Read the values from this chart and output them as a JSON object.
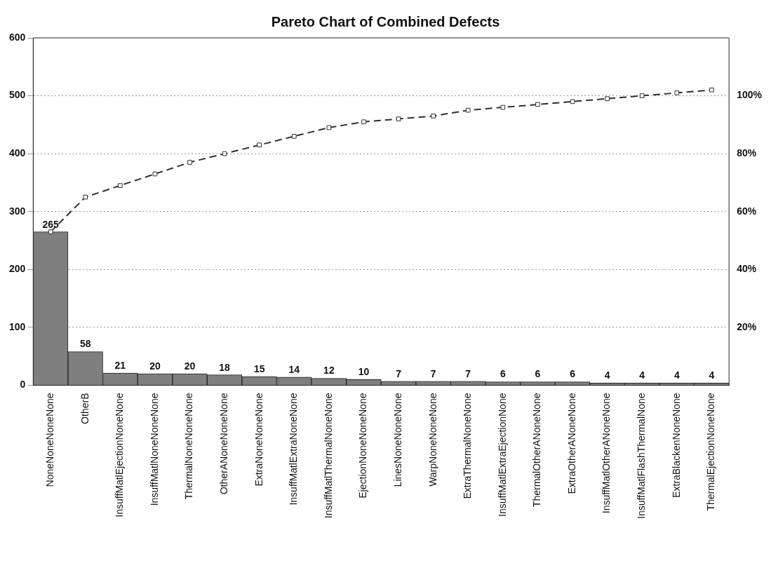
{
  "chart_data": {
    "type": "bar",
    "title": "Pareto Chart of Combined Defects",
    "categories": [
      "NoneNoneNoneNone",
      "OtherB",
      "InsuffMatlEjectionNoneNone",
      "InsuffMatlNoneNoneNone",
      "ThermalNoneNoneNone",
      "OtherANoneNoneNone",
      "ExtraNoneNoneNone",
      "InsuffMatlExtraNoneNone",
      "InsuffMatlThermalNoneNone",
      "EjectionNoneNoneNone",
      "LinesNoneNoneNone",
      "WarpNoneNoneNone",
      "ExtraThermalNoneNone",
      "InsuffMatlExtraEjectionNone",
      "ThermalOtherANoneNone",
      "ExtraOtherANoneNone",
      "InsuffMatlOtherANoneNone",
      "InsuffMatlFlashThermalNone",
      "ExtraBlackenNoneNone",
      "ThermalEjectionNoneNone"
    ],
    "series": [
      {
        "color": "#7f7f7f",
        "values": [
          265,
          58,
          21,
          20,
          20,
          18,
          15,
          14,
          12,
          10,
          7,
          7,
          7,
          6,
          6,
          6,
          4,
          4,
          4,
          4
        ],
        "value_labels": [
          "265",
          "58",
          "21",
          "20",
          "20",
          "18",
          "15",
          "14",
          "12",
          "10",
          "7",
          "7",
          "7",
          "6",
          "6",
          "6",
          "4",
          "4",
          "4",
          "4"
        ]
      },
      {
        "type": "line",
        "axis": "y2",
        "color": "#303030",
        "marker": "square",
        "line_style": "dashed",
        "values": [
          53,
          65,
          69,
          73,
          77,
          80,
          83,
          86,
          89,
          91,
          92,
          93,
          95,
          96,
          97,
          98,
          99,
          100,
          101,
          102
        ]
      }
    ],
    "ylim": [
      0,
      600
    ],
    "yticks": [
      0,
      100,
      200,
      300,
      400,
      500,
      600
    ],
    "y2lim": [
      0,
      120
    ],
    "y2ticks": [
      {
        "value": 20,
        "label": "20%"
      },
      {
        "value": 40,
        "label": "40%"
      },
      {
        "value": 60,
        "label": "60%"
      },
      {
        "value": 80,
        "label": "80%"
      },
      {
        "value": 100,
        "label": "100%"
      }
    ],
    "grid": "y",
    "legend": false
  }
}
